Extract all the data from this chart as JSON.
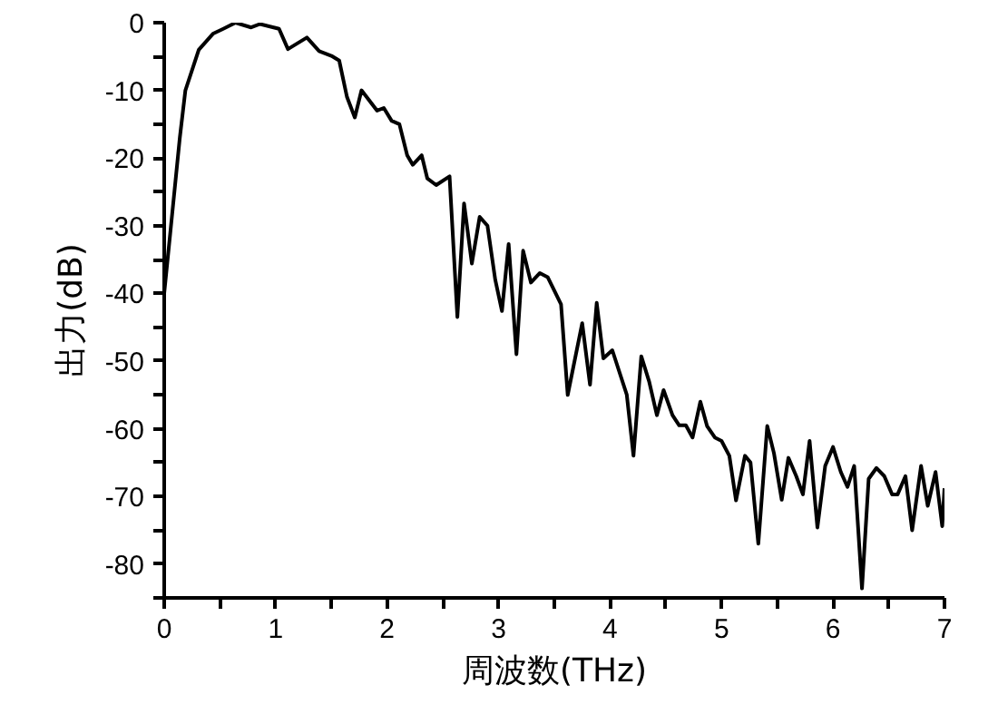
{
  "chart_data": {
    "type": "line",
    "xlabel": "周波数(THz)",
    "ylabel": "出力(dB)",
    "x": [
      0,
      0.14,
      0.19,
      0.31,
      0.44,
      0.53,
      0.64,
      0.78,
      0.86,
      1.03,
      1.11,
      1.28,
      1.39,
      1.5,
      1.57,
      1.64,
      1.71,
      1.77,
      1.91,
      1.97,
      2.04,
      2.11,
      2.18,
      2.23,
      2.31,
      2.36,
      2.44,
      2.56,
      2.63,
      2.69,
      2.76,
      2.83,
      2.9,
      2.97,
      3.03,
      3.09,
      3.16,
      3.22,
      3.29,
      3.37,
      3.44,
      3.56,
      3.62,
      3.75,
      3.82,
      3.88,
      3.94,
      4.02,
      4.15,
      4.21,
      4.28,
      4.35,
      4.42,
      4.48,
      4.56,
      4.62,
      4.68,
      4.74,
      4.81,
      4.87,
      4.94,
      5.0,
      5.07,
      5.13,
      5.21,
      5.26,
      5.33,
      5.41,
      5.47,
      5.54,
      5.6,
      5.67,
      5.73,
      5.79,
      5.86,
      5.93,
      6.0,
      6.07,
      6.13,
      6.19,
      6.26,
      6.32,
      6.39,
      6.46,
      6.53,
      6.58,
      6.65,
      6.71,
      6.79,
      6.85,
      6.92,
      6.98,
      7.0
    ],
    "series": [
      {
        "color": "#000000",
        "values": [
          -40,
          -17,
          -10,
          -4,
          -1.6,
          -0.9,
          0,
          -0.7,
          -0.2,
          -0.9,
          -3.9,
          -2.2,
          -4.2,
          -4.9,
          -5.6,
          -11,
          -14,
          -10,
          -13,
          -12.6,
          -14.5,
          -15,
          -19.6,
          -21,
          -19.6,
          -23,
          -24,
          -22.7,
          -43.5,
          -26.7,
          -35.6,
          -28.7,
          -30,
          -38,
          -42.6,
          -32.7,
          -49,
          -33.7,
          -38.4,
          -37,
          -37.6,
          -41.6,
          -55,
          -44.4,
          -53.5,
          -41.4,
          -49.6,
          -48.4,
          -55,
          -64,
          -49.3,
          -53,
          -58,
          -54.3,
          -58,
          -59.5,
          -59.5,
          -61.3,
          -56,
          -59.6,
          -61.3,
          -61.8,
          -64,
          -70.6,
          -64,
          -65,
          -77,
          -59.6,
          -63.6,
          -70.5,
          -64.3,
          -67,
          -69.7,
          -61.8,
          -74.6,
          -65.5,
          -62.7,
          -66.4,
          -68.6,
          -65.5,
          -83.6,
          -67.4,
          -65.8,
          -67,
          -69.7,
          -69.7,
          -67,
          -75,
          -65.5,
          -71.4,
          -66.4,
          -74.4,
          -68.8
        ]
      }
    ],
    "xlim": [
      0,
      7
    ],
    "ylim": [
      -85,
      0
    ],
    "xticks": [
      0,
      {
        "value": 0.5,
        "label": null
      },
      1,
      {
        "value": 1.5,
        "label": null
      },
      2,
      {
        "value": 2.5,
        "label": null
      },
      3,
      {
        "value": 3.5,
        "label": null
      },
      4,
      {
        "value": 4.5,
        "label": null
      },
      5,
      {
        "value": 5.5,
        "label": null
      },
      6,
      {
        "value": 6.5,
        "label": null
      },
      7
    ],
    "yticks": [
      {
        "value": -85,
        "label": null
      },
      -80,
      {
        "value": -75,
        "label": null
      },
      -70,
      {
        "value": -65,
        "label": null
      },
      -60,
      {
        "value": -55,
        "label": null
      },
      -50,
      {
        "value": -45,
        "label": null
      },
      -40,
      {
        "value": -35,
        "label": null
      },
      -30,
      {
        "value": -25,
        "label": null
      },
      -20,
      {
        "value": -15,
        "label": null
      },
      -10,
      {
        "value": -5,
        "label": null
      },
      0
    ],
    "grid": false,
    "line_style": "solid",
    "marker": "none"
  }
}
